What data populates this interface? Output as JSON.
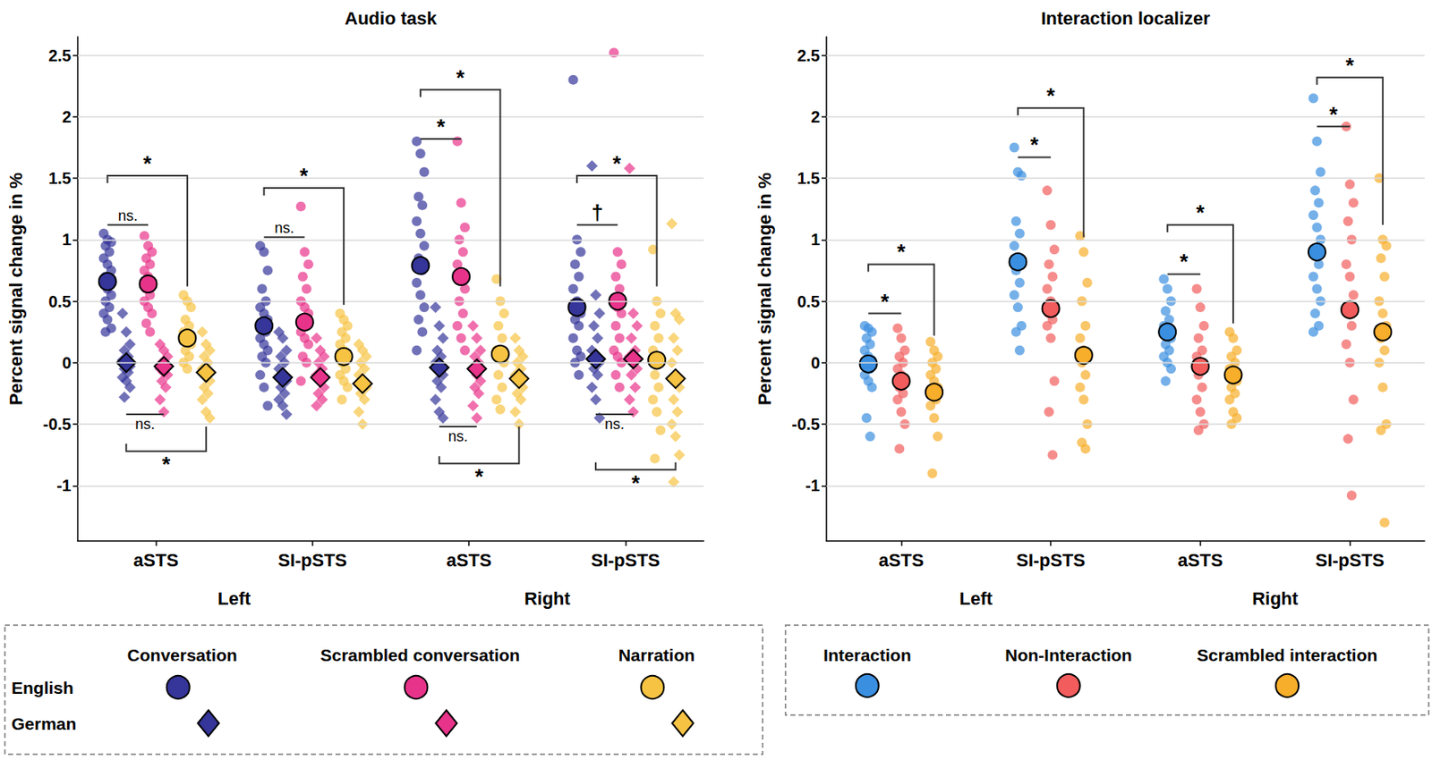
{
  "chart_data": [
    {
      "type": "scatter",
      "title": "Audio task",
      "y_label": "Percent signal change in %",
      "categories": [
        "aSTS",
        "SI-pSTS",
        "aSTS",
        "SI-pSTS"
      ],
      "category_groups": [
        "Left",
        "Left",
        "Right",
        "Right"
      ],
      "ylim": [
        -1.45,
        2.65
      ],
      "yticks": [
        -1,
        -0.5,
        0,
        0.5,
        1,
        1.5,
        2,
        2.5
      ],
      "grid": true,
      "series": [
        {
          "name": "Conversation",
          "group": "English",
          "color": "#35359a",
          "marker": "circle",
          "values": [
            [
              1.05,
              1.0,
              0.98,
              0.95,
              0.9,
              0.85,
              0.8,
              0.75,
              0.7,
              0.68,
              0.65,
              0.6,
              0.55,
              0.5,
              0.45,
              0.4,
              0.35,
              0.28,
              0.25
            ],
            [
              0.95,
              0.9,
              0.75,
              0.6,
              0.5,
              0.45,
              0.4,
              0.35,
              0.3,
              0.25,
              0.2,
              0.15,
              0.1,
              0.05,
              0,
              -0.1,
              -0.2,
              -0.35
            ],
            [
              1.8,
              1.7,
              1.55,
              1.35,
              1.28,
              1.15,
              1.05,
              0.95,
              0.85,
              0.75,
              0.65,
              0.55,
              0.45,
              0.35,
              0.25,
              0.1
            ],
            [
              2.3,
              1.0,
              0.9,
              0.8,
              0.7,
              0.6,
              0.5,
              0.4,
              0.35,
              0.3,
              0.2,
              0.1,
              0.05,
              0,
              -0.1
            ]
          ],
          "means": [
            0.66,
            0.3,
            0.79,
            0.45
          ]
        },
        {
          "name": "Conversation",
          "group": "German",
          "color": "#35359a",
          "marker": "diamond",
          "values": [
            [
              0.4,
              0.25,
              0.15,
              0.1,
              0.05,
              0.02,
              0,
              -0.03,
              -0.05,
              -0.08,
              -0.12,
              -0.15,
              -0.2,
              -0.28
            ],
            [
              0.25,
              0.2,
              0.1,
              0.05,
              0,
              -0.05,
              -0.1,
              -0.15,
              -0.2,
              -0.25,
              -0.3,
              -0.35,
              -0.42
            ],
            [
              0.45,
              0.3,
              0.2,
              0.1,
              0.05,
              0,
              -0.05,
              -0.1,
              -0.15,
              -0.2,
              -0.3,
              -0.4,
              -0.45
            ],
            [
              1.6,
              0.55,
              0.4,
              0.3,
              0.2,
              0.1,
              0.05,
              0,
              -0.05,
              -0.1,
              -0.2,
              -0.3,
              -0.45
            ]
          ],
          "means": [
            0,
            -0.12,
            -0.04,
            0.03
          ]
        },
        {
          "name": "Scrambled conversation",
          "group": "English",
          "color": "#e8338a",
          "marker": "circle",
          "values": [
            [
              1.03,
              0.95,
              0.9,
              0.85,
              0.8,
              0.75,
              0.7,
              0.65,
              0.6,
              0.55,
              0.5,
              0.45,
              0.4,
              0.32,
              0.25
            ],
            [
              1.27,
              0.9,
              0.8,
              0.7,
              0.6,
              0.5,
              0.45,
              0.4,
              0.35,
              0.3,
              0.25,
              0.2,
              0.15,
              0.05,
              0,
              -0.15
            ],
            [
              1.8,
              1.3,
              1.1,
              1.0,
              0.9,
              0.8,
              0.7,
              0.6,
              0.5,
              0.4,
              0.3,
              0.2,
              0.1
            ],
            [
              2.52,
              0.9,
              0.8,
              0.7,
              0.6,
              0.5,
              0.45,
              0.4,
              0.3,
              0.2,
              0.1,
              0.05,
              0,
              -0.1,
              -0.2
            ]
          ],
          "means": [
            0.64,
            0.33,
            0.7,
            0.5
          ]
        },
        {
          "name": "Scrambled conversation",
          "group": "German",
          "color": "#e8338a",
          "marker": "diamond",
          "values": [
            [
              0.15,
              0.1,
              0.05,
              0,
              -0.03,
              -0.05,
              -0.08,
              -0.1,
              -0.15,
              -0.2,
              -0.3,
              -0.4
            ],
            [
              0.2,
              0.1,
              0.05,
              0,
              -0.05,
              -0.1,
              -0.15,
              -0.2,
              -0.25,
              -0.3,
              -0.35
            ],
            [
              0.3,
              0.2,
              0.1,
              0.05,
              0,
              -0.05,
              -0.1,
              -0.15,
              -0.2,
              -0.25,
              -0.35,
              -0.45
            ],
            [
              1.58,
              0.4,
              0.3,
              0.2,
              0.1,
              0.05,
              0,
              -0.05,
              -0.1,
              -0.2,
              -0.3,
              -0.4
            ]
          ],
          "means": [
            -0.03,
            -0.12,
            -0.05,
            0.03
          ]
        },
        {
          "name": "Narration",
          "group": "English",
          "color": "#f6c343",
          "marker": "circle",
          "values": [
            [
              0.55,
              0.5,
              0.45,
              0.35,
              0.3,
              0.25,
              0.2,
              0.15,
              0.1,
              0.05,
              0,
              -0.05
            ],
            [
              0.4,
              0.35,
              0.3,
              0.25,
              0.2,
              0.15,
              0.1,
              0.05,
              0,
              -0.05,
              -0.1,
              -0.15,
              -0.2,
              -0.3
            ],
            [
              0.68,
              0.5,
              0.4,
              0.3,
              0.2,
              0.1,
              0.05,
              0,
              -0.1,
              -0.2,
              -0.3,
              -0.38
            ],
            [
              0.92,
              0.5,
              0.4,
              0.3,
              0.2,
              0.1,
              0.05,
              0,
              -0.1,
              -0.2,
              -0.3,
              -0.4,
              -0.55,
              -0.78
            ]
          ],
          "means": [
            0.2,
            0.05,
            0.07,
            0.02
          ]
        },
        {
          "name": "Narration",
          "group": "German",
          "color": "#f6c343",
          "marker": "diamond",
          "values": [
            [
              0.25,
              0.15,
              0.1,
              0.05,
              0,
              -0.05,
              -0.1,
              -0.15,
              -0.2,
              -0.25,
              -0.3,
              -0.4,
              -0.45
            ],
            [
              0.15,
              0.1,
              0.05,
              0,
              -0.05,
              -0.1,
              -0.15,
              -0.2,
              -0.25,
              -0.3,
              -0.4,
              -0.5
            ],
            [
              0.2,
              0.1,
              0.05,
              0,
              -0.05,
              -0.1,
              -0.15,
              -0.2,
              -0.25,
              -0.3,
              -0.4,
              -0.5
            ],
            [
              1.13,
              0.4,
              0.35,
              0.2,
              0.1,
              0,
              -0.1,
              -0.2,
              -0.3,
              -0.4,
              -0.5,
              -0.6,
              -0.75,
              -0.97
            ]
          ],
          "means": [
            -0.08,
            -0.17,
            -0.13,
            -0.13
          ]
        }
      ],
      "comparisons": [
        {
          "category": 0,
          "from": 0,
          "to": 2,
          "label": "ns."
        },
        {
          "category": 0,
          "from": 0,
          "to": 4,
          "label": "*"
        },
        {
          "category": 0,
          "from": 1,
          "to": 3,
          "label": "ns."
        },
        {
          "category": 0,
          "from": 1,
          "to": 5,
          "label": "*"
        },
        {
          "category": 1,
          "from": 0,
          "to": 2,
          "label": "ns."
        },
        {
          "category": 1,
          "from": 0,
          "to": 4,
          "label": "*"
        },
        {
          "category": 2,
          "from": 0,
          "to": 2,
          "label": "*"
        },
        {
          "category": 2,
          "from": 0,
          "to": 4,
          "label": "*"
        },
        {
          "category": 2,
          "from": 1,
          "to": 3,
          "label": "ns."
        },
        {
          "category": 2,
          "from": 1,
          "to": 5,
          "label": "*"
        },
        {
          "category": 3,
          "from": 0,
          "to": 2,
          "label": "†"
        },
        {
          "category": 3,
          "from": 0,
          "to": 4,
          "label": "*"
        },
        {
          "category": 3,
          "from": 1,
          "to": 3,
          "label": "ns."
        },
        {
          "category": 3,
          "from": 1,
          "to": 5,
          "label": "*"
        }
      ]
    },
    {
      "type": "scatter",
      "title": "Interaction localizer",
      "y_label": "Percent signal change in %",
      "categories": [
        "aSTS",
        "SI-pSTS",
        "aSTS",
        "SI-pSTS"
      ],
      "category_groups": [
        "Left",
        "Left",
        "Right",
        "Right"
      ],
      "ylim": [
        -1.45,
        2.65
      ],
      "yticks": [
        -1,
        -0.5,
        0,
        0.5,
        1,
        1.5,
        2,
        2.5
      ],
      "grid": true,
      "series": [
        {
          "name": "Interaction",
          "color": "#3a8fe0",
          "marker": "circle",
          "values": [
            [
              0.3,
              0.28,
              0.25,
              0.2,
              0.15,
              0.1,
              0.05,
              0.02,
              0,
              -0.05,
              -0.1,
              -0.15,
              -0.2,
              -0.45,
              -0.6
            ],
            [
              1.75,
              1.55,
              1.52,
              1.15,
              1.05,
              0.95,
              0.85,
              0.8,
              0.75,
              0.65,
              0.55,
              0.45,
              0.3,
              0.25,
              0.1
            ],
            [
              0.68,
              0.6,
              0.5,
              0.42,
              0.35,
              0.3,
              0.25,
              0.2,
              0.15,
              0.1,
              0.05,
              0,
              -0.05,
              -0.15
            ],
            [
              2.15,
              1.8,
              1.55,
              1.4,
              1.3,
              1.2,
              1.1,
              1.0,
              0.9,
              0.8,
              0.7,
              0.6,
              0.5,
              0.4,
              0.3,
              0.25
            ]
          ],
          "means": [
            -0.01,
            0.82,
            0.25,
            0.9
          ]
        },
        {
          "name": "Non-Interaction",
          "color": "#f25c5c",
          "marker": "circle",
          "values": [
            [
              0.28,
              0.2,
              0.1,
              0.05,
              0,
              -0.05,
              -0.1,
              -0.15,
              -0.2,
              -0.25,
              -0.3,
              -0.4,
              -0.5,
              -0.7
            ],
            [
              1.4,
              1.12,
              0.92,
              0.8,
              0.7,
              0.6,
              0.5,
              0.45,
              0.4,
              0.35,
              0.3,
              0.2,
              -0.15,
              -0.4,
              -0.75
            ],
            [
              0.6,
              0.45,
              0.3,
              0.2,
              0.1,
              0.05,
              0,
              -0.05,
              -0.1,
              -0.2,
              -0.3,
              -0.4,
              -0.5,
              -0.55
            ],
            [
              1.92,
              1.45,
              1.3,
              1.15,
              1.0,
              0.8,
              0.7,
              0.55,
              0.4,
              0.3,
              0.15,
              0,
              -0.3,
              -0.62,
              -1.08
            ]
          ],
          "means": [
            -0.15,
            0.44,
            -0.03,
            0.43
          ]
        },
        {
          "name": "Scrambled interaction",
          "color": "#f7ae2a",
          "marker": "circle",
          "values": [
            [
              0.17,
              0.1,
              0.05,
              0,
              -0.05,
              -0.1,
              -0.15,
              -0.2,
              -0.25,
              -0.3,
              -0.35,
              -0.45,
              -0.6,
              -0.9
            ],
            [
              1.03,
              0.9,
              0.65,
              0.5,
              0.3,
              0.2,
              0.1,
              0.05,
              0,
              -0.1,
              -0.2,
              -0.3,
              -0.5,
              -0.65,
              -0.7
            ],
            [
              0.25,
              0.2,
              0.1,
              0.05,
              0,
              -0.05,
              -0.1,
              -0.15,
              -0.2,
              -0.25,
              -0.3,
              -0.4,
              -0.45,
              -0.5
            ],
            [
              1.5,
              1.0,
              0.95,
              0.85,
              0.7,
              0.5,
              0.4,
              0.3,
              0.2,
              0.1,
              0,
              -0.2,
              -0.5,
              -0.55,
              -1.3
            ]
          ],
          "means": [
            -0.24,
            0.06,
            -0.1,
            0.25
          ]
        }
      ],
      "comparisons": [
        {
          "category": 0,
          "from": 0,
          "to": 1,
          "label": "*"
        },
        {
          "category": 0,
          "from": 0,
          "to": 2,
          "label": "*"
        },
        {
          "category": 1,
          "from": 0,
          "to": 1,
          "label": "*"
        },
        {
          "category": 1,
          "from": 0,
          "to": 2,
          "label": "*"
        },
        {
          "category": 2,
          "from": 0,
          "to": 1,
          "label": "*"
        },
        {
          "category": 2,
          "from": 0,
          "to": 2,
          "label": "*"
        },
        {
          "category": 3,
          "from": 0,
          "to": 1,
          "label": "*"
        },
        {
          "category": 3,
          "from": 0,
          "to": 2,
          "label": "*"
        }
      ]
    }
  ]
}
